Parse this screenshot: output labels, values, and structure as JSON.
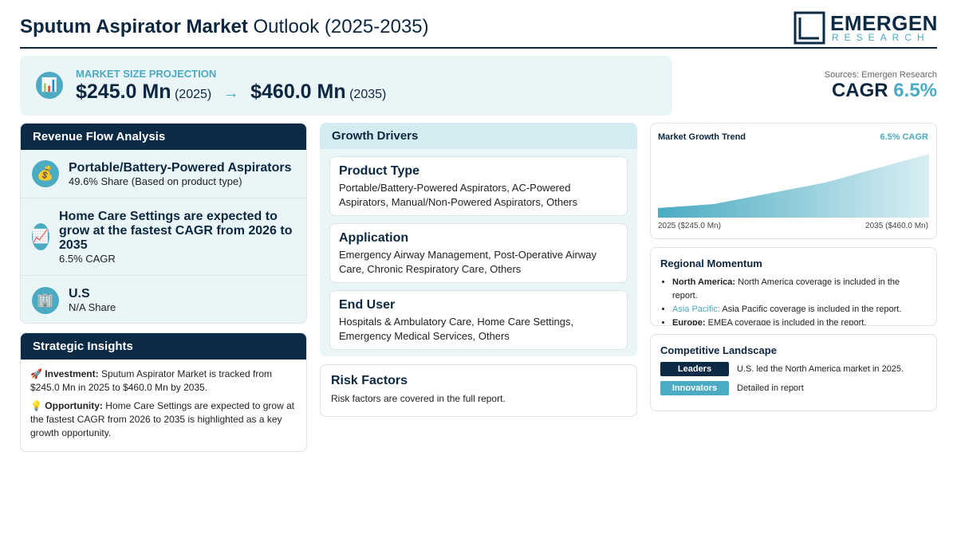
{
  "header": {
    "title_bold": "Sputum Aspirator Market",
    "title_rest": "Outlook (2025-2035)",
    "logo_main": "EMERGEN",
    "logo_sub": "RESEARCH"
  },
  "projection": {
    "label": "MARKET SIZE PROJECTION",
    "start_value": "$245.0 Mn",
    "start_year": "(2025)",
    "end_value": "$460.0 Mn",
    "end_year": "(2035)"
  },
  "sources": "Sources: Emergen Research",
  "cagr": {
    "label": "CAGR",
    "value": "6.5%"
  },
  "revenue_flow": {
    "title": "Revenue Flow Analysis",
    "items": [
      {
        "title": "Portable/Battery-Powered Aspirators",
        "detail": "49.6% Share (Based on product type)"
      },
      {
        "title": "Home Care Settings are expected to grow at the fastest CAGR from 2026 to 2035",
        "detail": "6.5% CAGR"
      },
      {
        "title": "U.S",
        "detail": "N/A Share"
      }
    ]
  },
  "strategic_insights": {
    "title": "Strategic Insights",
    "items": [
      {
        "label": "Investment:",
        "text": "Sputum Aspirator Market is tracked from $245.0 Mn in 2025 to $460.0 Mn by 2035."
      },
      {
        "label": "Opportunity:",
        "text": "Home Care Settings are expected to grow at the fastest CAGR from 2026 to 2035 is highlighted as a key growth opportunity."
      }
    ]
  },
  "growth_drivers": {
    "title": "Growth Drivers",
    "items": [
      {
        "title": "Product Type",
        "text": "Portable/Battery-Powered Aspirators, AC-Powered Aspirators, Manual/Non-Powered Aspirators, Others"
      },
      {
        "title": "Application",
        "text": "Emergency Airway Management, Post-Operative Airway Care, Chronic Respiratory Care, Others"
      },
      {
        "title": "End User",
        "text": "Hospitals & Ambulatory Care, Home Care Settings, Emergency Medical Services, Others"
      }
    ]
  },
  "risk_factors": {
    "title": "Risk Factors",
    "text": "Risk factors are covered in the full report."
  },
  "trend": {
    "title": "Market Growth Trend",
    "cagr": "6.5% CAGR",
    "start": "2025 ($245.0 Mn)",
    "end": "2035 ($460.0 Mn)"
  },
  "regional": {
    "title": "Regional Momentum",
    "items": [
      {
        "region": "North America:",
        "text": "North America coverage is included in the report."
      },
      {
        "region": "Asia Pacific:",
        "text": "Asia Pacific coverage is included in the report."
      },
      {
        "region": "Europe:",
        "text": "EMEA coverage is included in the report."
      }
    ]
  },
  "competitive": {
    "title": "Competitive Landscape",
    "items": [
      {
        "badge": "Leaders",
        "text": "U.S. led the North America market in 2025."
      },
      {
        "badge": "Innovators",
        "text": "Detailed in report"
      }
    ]
  }
}
